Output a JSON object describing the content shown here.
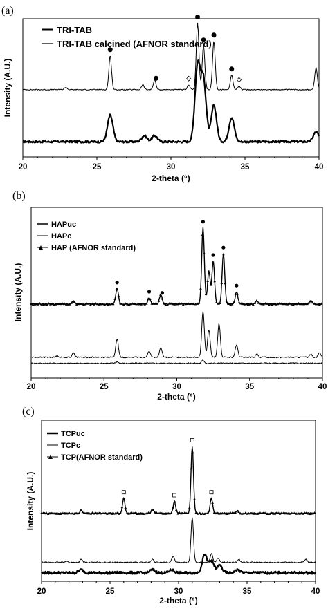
{
  "chart_data": [
    {
      "type": "line",
      "panel_label": "(a)",
      "xlabel": "2-theta (°)",
      "ylabel": "Intensity (A.U.)",
      "xlim": [
        20,
        40
      ],
      "xticks": [
        20,
        25,
        30,
        35,
        40
      ],
      "legend_position": "top-left",
      "legend": [
        "TRI-TAB",
        "TRI-TAB calcined (AFNOR standard)"
      ],
      "series": [
        {
          "name": "TRI-TAB",
          "style": "thick",
          "peaks": [
            [
              25.9,
              0.22
            ],
            [
              28.2,
              0.05
            ],
            [
              28.9,
              0.05
            ],
            [
              31.8,
              0.62
            ],
            [
              32.2,
              0.5
            ],
            [
              32.9,
              0.3
            ],
            [
              34.1,
              0.2
            ],
            [
              39.8,
              0.08
            ]
          ],
          "baseline": 0.04
        },
        {
          "name": "TRI-TAB calcined (AFNOR standard)",
          "style": "thin",
          "peaks": [
            [
              22.9,
              0.02
            ],
            [
              25.9,
              0.28
            ],
            [
              28.1,
              0.04
            ],
            [
              28.9,
              0.08
            ],
            [
              31.2,
              0.04
            ],
            [
              31.8,
              0.55
            ],
            [
              32.2,
              0.36
            ],
            [
              32.9,
              0.4
            ],
            [
              34.1,
              0.12
            ],
            [
              34.6,
              0.03
            ],
            [
              39.8,
              0.18
            ]
          ],
          "baseline": 0.47
        }
      ],
      "markers": [
        {
          "x": 25.9,
          "symbol": "dot"
        },
        {
          "x": 29.0,
          "symbol": "dot"
        },
        {
          "x": 31.2,
          "symbol": "diamond"
        },
        {
          "x": 31.8,
          "symbol": "dot"
        },
        {
          "x": 32.2,
          "symbol": "dot"
        },
        {
          "x": 32.9,
          "symbol": "dot"
        },
        {
          "x": 34.1,
          "symbol": "dot"
        },
        {
          "x": 34.6,
          "symbol": "diamond"
        }
      ]
    },
    {
      "type": "line",
      "panel_label": "(b)",
      "xlabel": "2-theta (°)",
      "ylabel": "Intensity (A.U.)",
      "xlim": [
        20,
        40
      ],
      "xticks": [
        20,
        25,
        30,
        35,
        40
      ],
      "legend_position": "top-left",
      "legend": [
        "HAPuc",
        "HAPc",
        "HAP (AFNOR standard)"
      ],
      "series": [
        {
          "name": "HAPuc",
          "style": "thin",
          "peaks": [
            [
              25.9,
              0.01
            ],
            [
              31.8,
              0.02
            ]
          ],
          "baseline": 0.02
        },
        {
          "name": "HAPc",
          "style": "thin",
          "peaks": [
            [
              21.8,
              0.01
            ],
            [
              22.9,
              0.03
            ],
            [
              25.9,
              0.12
            ],
            [
              28.1,
              0.04
            ],
            [
              28.9,
              0.06
            ],
            [
              31.8,
              0.3
            ],
            [
              32.2,
              0.18
            ],
            [
              32.9,
              0.22
            ],
            [
              34.1,
              0.08
            ],
            [
              35.5,
              0.02
            ],
            [
              39.2,
              0.02
            ],
            [
              39.8,
              0.03
            ]
          ],
          "baseline": 0.06
        },
        {
          "name": "HAP (AFNOR standard)",
          "style": "triangles",
          "peaks": [
            [
              22.9,
              0.02
            ],
            [
              25.9,
              0.1
            ],
            [
              28.1,
              0.04
            ],
            [
              28.9,
              0.06
            ],
            [
              31.8,
              0.5
            ],
            [
              32.2,
              0.22
            ],
            [
              32.5,
              0.28
            ],
            [
              33.2,
              0.33
            ],
            [
              34.1,
              0.08
            ],
            [
              35.5,
              0.02
            ],
            [
              39.2,
              0.02
            ]
          ],
          "baseline": 0.41
        }
      ],
      "markers": [
        {
          "x": 25.9,
          "symbol": "dot"
        },
        {
          "x": 28.1,
          "symbol": "dot"
        },
        {
          "x": 29.0,
          "symbol": "dot"
        },
        {
          "x": 31.8,
          "symbol": "dot"
        },
        {
          "x": 32.5,
          "symbol": "dot"
        },
        {
          "x": 33.2,
          "symbol": "dot"
        },
        {
          "x": 34.1,
          "symbol": "dot"
        }
      ]
    },
    {
      "type": "line",
      "panel_label": "(c)",
      "xlabel": "2-theta (°)",
      "ylabel": "Intensity (A.U.)",
      "xlim": [
        20,
        40
      ],
      "xticks": [
        20,
        25,
        30,
        35,
        40
      ],
      "legend_position": "top-left",
      "legend": [
        "TCPuc",
        "TCPc",
        "TCP(AFNOR standard)"
      ],
      "series": [
        {
          "name": "TCPuc",
          "style": "thick",
          "peaks": [
            [
              22.9,
              0.02
            ],
            [
              28.1,
              0.02
            ],
            [
              29.5,
              0.02
            ],
            [
              31.9,
              0.12
            ],
            [
              32.4,
              0.08
            ],
            [
              33.0,
              0.05
            ],
            [
              34.3,
              0.02
            ]
          ],
          "baseline": 0.02
        },
        {
          "name": "TCPc",
          "style": "thin",
          "peaks": [
            [
              21.8,
              0.01
            ],
            [
              22.9,
              0.02
            ],
            [
              28.1,
              0.02
            ],
            [
              29.6,
              0.04
            ],
            [
              31.0,
              0.3
            ],
            [
              32.4,
              0.06
            ],
            [
              32.9,
              0.03
            ],
            [
              34.4,
              0.02
            ],
            [
              39.3,
              0.02
            ]
          ],
          "baseline": 0.09
        },
        {
          "name": "TCP(AFNOR standard)",
          "style": "triangles",
          "peaks": [
            [
              22.9,
              0.02
            ],
            [
              26.0,
              0.1
            ],
            [
              28.1,
              0.03
            ],
            [
              29.7,
              0.08
            ],
            [
              31.0,
              0.45
            ],
            [
              32.4,
              0.1
            ],
            [
              34.3,
              0.02
            ]
          ],
          "baseline": 0.42
        }
      ],
      "markers": [
        {
          "x": 26.0,
          "symbol": "square"
        },
        {
          "x": 29.7,
          "symbol": "square"
        },
        {
          "x": 31.0,
          "symbol": "square"
        },
        {
          "x": 32.4,
          "symbol": "square"
        }
      ]
    }
  ]
}
